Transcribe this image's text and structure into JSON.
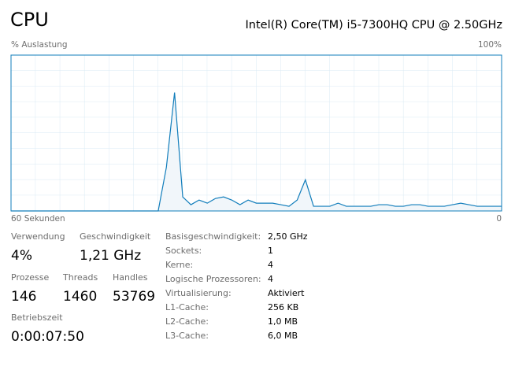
{
  "header": {
    "title": "CPU",
    "processor": "Intel(R) Core(TM) i5-7300HQ CPU @ 2.50GHz"
  },
  "chart_data": {
    "type": "area",
    "y_label": "% Auslastung",
    "x": [
      60,
      59,
      58,
      57,
      56,
      55,
      54,
      53,
      52,
      51,
      50,
      49,
      48,
      47,
      46,
      45,
      44,
      43,
      42,
      41,
      40,
      39,
      38,
      37,
      36,
      35,
      34,
      33,
      32,
      31,
      30,
      29,
      28,
      27,
      26,
      25,
      24,
      23,
      22,
      21,
      20,
      19,
      18,
      17,
      16,
      15,
      14,
      13,
      12,
      11,
      10,
      9,
      8,
      7,
      6,
      5,
      4,
      3,
      2,
      1,
      0
    ],
    "values": [
      0,
      0,
      0,
      0,
      0,
      0,
      0,
      0,
      0,
      0,
      0,
      0,
      0,
      0,
      0,
      0,
      0,
      0,
      0,
      28,
      76,
      9,
      4,
      7,
      5,
      8,
      9,
      7,
      4,
      7,
      5,
      5,
      5,
      4,
      3,
      7,
      20,
      3,
      3,
      3,
      5,
      3,
      3,
      3,
      3,
      4,
      4,
      3,
      3,
      4,
      4,
      3,
      3,
      3,
      4,
      5,
      4,
      3,
      3,
      3,
      3
    ],
    "color": "#117dbb",
    "fill": "#f1f6fa",
    "xlim": [
      60,
      0
    ],
    "xticks": [
      {
        "value": 60,
        "label": "60 Sekunden"
      },
      0
    ],
    "ylim": [
      0,
      100
    ],
    "yticks": [
      {
        "value": 100,
        "label": "100%"
      }
    ],
    "grid": true
  },
  "stats": [
    {
      "label": "Verwendung",
      "value": "4%"
    },
    {
      "label": "Geschwindigkeit",
      "value": "1,21 GHz"
    },
    {
      "label": "Prozesse",
      "value": "146"
    },
    {
      "label": "Threads",
      "value": "1460"
    },
    {
      "label": "Handles",
      "value": "53769"
    },
    {
      "label": "Betriebszeit",
      "value": "0:00:07:50"
    }
  ],
  "details": [
    {
      "label": "Basisgeschwindigkeit:",
      "value": "2,50 GHz"
    },
    {
      "label": "Sockets:",
      "value": "1"
    },
    {
      "label": "Kerne:",
      "value": "4"
    },
    {
      "label": "Logische Prozessoren:",
      "value": "4"
    },
    {
      "label": "Virtualisierung:",
      "value": "Aktiviert"
    },
    {
      "label": "L1-Cache:",
      "value": "256 KB"
    },
    {
      "label": "L2-Cache:",
      "value": "1,0 MB"
    },
    {
      "label": "L3-Cache:",
      "value": "6,0 MB"
    }
  ]
}
